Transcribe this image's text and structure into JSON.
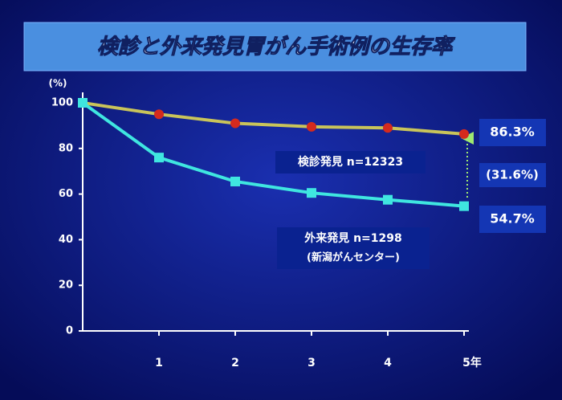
{
  "chart_data": {
    "type": "line",
    "title": "検診と外来発見胃がん手術例の生存率",
    "y_label": "(%)",
    "x": [
      0,
      1,
      2,
      3,
      4,
      5
    ],
    "xlim": [
      0,
      5
    ],
    "xticks": [
      1,
      2,
      3,
      4,
      {
        "value": 5,
        "label": "5年"
      }
    ],
    "ylim": [
      0,
      100
    ],
    "yticks": [
      0,
      20,
      40,
      60,
      80,
      100
    ],
    "series": [
      {
        "name": "検診発見 n=12323",
        "color": "#c9c45a",
        "marker_color": "#d42a1e",
        "marker": "circle",
        "values": [
          100,
          95,
          91,
          89.5,
          89,
          86.3
        ],
        "value_labels": [
          null,
          null,
          null,
          null,
          null,
          "86.3%"
        ]
      },
      {
        "name": "外来発見 n=1298",
        "note": "(新潟がんセンター)",
        "color": "#3fe6e0",
        "marker_color": "#3fe6e0",
        "marker": "square",
        "values": [
          100,
          76,
          65.5,
          60.5,
          57.5,
          54.7
        ],
        "value_labels": [
          null,
          null,
          null,
          null,
          null,
          "54.7%"
        ]
      }
    ],
    "annotation": "(31.6%)"
  }
}
